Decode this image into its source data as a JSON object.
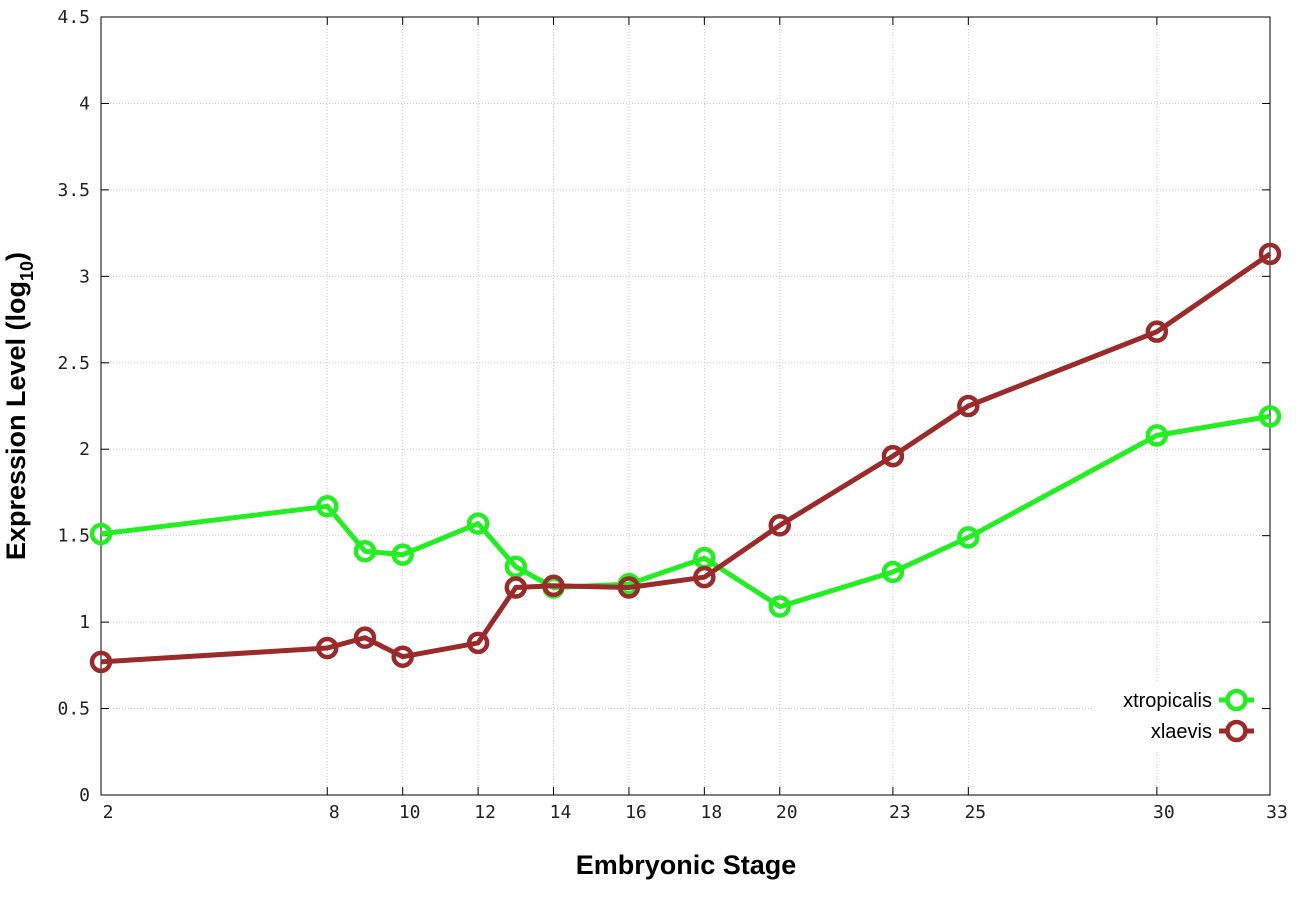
{
  "chart_data": {
    "type": "line",
    "xlabel": "Embryonic Stage",
    "ylabel": {
      "main": "Expression Level (log",
      "subscript": "10",
      "close": ")"
    },
    "xlim": [
      2,
      33
    ],
    "ylim": [
      0,
      4.5
    ],
    "x_ticks": [
      2,
      8,
      10,
      12,
      14,
      16,
      18,
      20,
      23,
      25,
      30,
      33
    ],
    "y_ticks": [
      {
        "value": 0,
        "label": "0"
      },
      {
        "value": 0.5,
        "label": "0.5"
      },
      {
        "value": 1,
        "label": "1"
      },
      {
        "value": 1.5,
        "label": "1.5"
      },
      {
        "value": 2,
        "label": "2"
      },
      {
        "value": 2.5,
        "label": "2.5"
      },
      {
        "value": 3,
        "label": "3"
      },
      {
        "value": 3.5,
        "label": "3.5"
      },
      {
        "value": 4,
        "label": "4"
      },
      {
        "value": 4.5,
        "label": "4.5"
      }
    ],
    "grid": true,
    "legend_position": "bottom-right",
    "series": [
      {
        "name": "xtropicalis",
        "color": "#22ee22",
        "x": [
          2,
          8,
          9,
          10,
          12,
          13,
          14,
          16,
          18,
          20,
          23,
          25,
          30,
          33
        ],
        "y": [
          1.51,
          1.67,
          1.41,
          1.39,
          1.57,
          1.32,
          1.2,
          1.22,
          1.37,
          1.09,
          1.29,
          1.49,
          2.08,
          2.19
        ]
      },
      {
        "name": "xlaevis",
        "color": "#9b2a2a",
        "x": [
          2,
          8,
          9,
          10,
          12,
          13,
          14,
          16,
          18,
          20,
          23,
          25,
          30,
          33
        ],
        "y": [
          0.77,
          0.85,
          0.91,
          0.8,
          0.88,
          1.2,
          1.21,
          1.2,
          1.26,
          1.56,
          1.96,
          2.25,
          2.68,
          3.13
        ]
      }
    ]
  }
}
